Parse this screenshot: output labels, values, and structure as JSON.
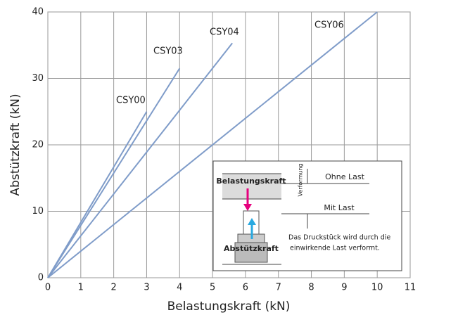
{
  "chart_data": {
    "type": "line",
    "x_label": "Belastungskraft (kN)",
    "y_label": "Abstützkraft (kN)",
    "xlim": [
      0,
      11
    ],
    "ylim": [
      0,
      40
    ],
    "xticks": [
      0,
      1,
      2,
      3,
      4,
      5,
      6,
      7,
      8,
      9,
      10,
      11
    ],
    "yticks": [
      0,
      10,
      20,
      30,
      40
    ],
    "grid": true,
    "series": [
      {
        "name": "CSY00",
        "color": "#7f9cc9",
        "x": [
          0,
          3
        ],
        "values": [
          0,
          25
        ]
      },
      {
        "name": "CSY03",
        "color": "#7f9cc9",
        "x": [
          0,
          4
        ],
        "values": [
          0,
          31.5
        ]
      },
      {
        "name": "CSY04",
        "color": "#7f9cc9",
        "x": [
          0,
          5.6
        ],
        "values": [
          0,
          35.3
        ]
      },
      {
        "name": "CSY06",
        "color": "#7f9cc9",
        "x": [
          0,
          10
        ],
        "values": [
          0,
          40
        ]
      }
    ],
    "inset": {
      "load": "Belastungskraft",
      "support": "Abstützkraft",
      "deformation": "Verformung",
      "no_load": "Ohne Last",
      "with_load": "Mit Last",
      "note": [
        "Das Druckstück wird durch die",
        "einwirkende Last verformt."
      ]
    }
  }
}
